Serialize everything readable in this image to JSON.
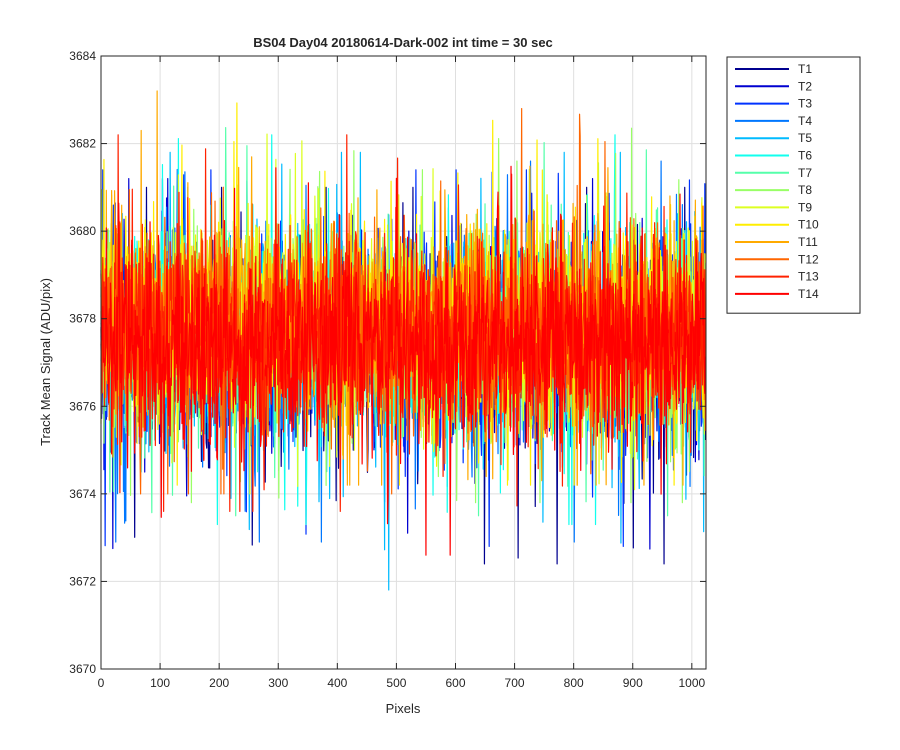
{
  "chart_data": {
    "type": "line",
    "title": "BS04 Day04 20180614-Dark-002 int time = 30 sec",
    "xlabel": "Pixels",
    "ylabel": "Track Mean Signal (ADU/pix)",
    "xlim": [
      0,
      1024
    ],
    "ylim": [
      3670,
      3684
    ],
    "xticks": [
      0,
      100,
      200,
      300,
      400,
      500,
      600,
      700,
      800,
      900,
      1000
    ],
    "xtick_labels": [
      "0",
      "100",
      "200",
      "300",
      "400",
      "500",
      "600",
      "700",
      "800",
      "900",
      "1000"
    ],
    "yticks": [
      3670,
      3672,
      3674,
      3676,
      3678,
      3680,
      3682,
      3684
    ],
    "ytick_labels": [
      "3670",
      "3672",
      "3674",
      "3676",
      "3678",
      "3680",
      "3682",
      "3684"
    ],
    "grid": true,
    "legend_position": "outside-top-right",
    "mean_level": 3677.7,
    "series": [
      {
        "name": "T1",
        "color": "#00008f",
        "mean": 3677.3,
        "min": 3672.4,
        "max": 3681.0
      },
      {
        "name": "T2",
        "color": "#0000d0",
        "mean": 3677.4,
        "min": 3672.6,
        "max": 3681.2
      },
      {
        "name": "T3",
        "color": "#0033ff",
        "mean": 3677.5,
        "min": 3672.8,
        "max": 3681.4
      },
      {
        "name": "T4",
        "color": "#0077ff",
        "mean": 3677.4,
        "min": 3672.9,
        "max": 3681.6
      },
      {
        "name": "T5",
        "color": "#00bbff",
        "mean": 3677.5,
        "min": 3671.0,
        "max": 3681.8
      },
      {
        "name": "T6",
        "color": "#11ffee",
        "mean": 3677.6,
        "min": 3673.3,
        "max": 3682.2
      },
      {
        "name": "T7",
        "color": "#55ffaa",
        "mean": 3677.7,
        "min": 3673.5,
        "max": 3682.6
      },
      {
        "name": "T8",
        "color": "#99ff66",
        "mean": 3677.8,
        "min": 3673.8,
        "max": 3683.4
      },
      {
        "name": "T9",
        "color": "#ddff22",
        "mean": 3677.9,
        "min": 3674.0,
        "max": 3683.6
      },
      {
        "name": "T10",
        "color": "#ffee00",
        "mean": 3678.0,
        "min": 3674.2,
        "max": 3684.0
      },
      {
        "name": "T11",
        "color": "#ffaa00",
        "mean": 3677.9,
        "min": 3674.2,
        "max": 3683.2
      },
      {
        "name": "T12",
        "color": "#ff6600",
        "mean": 3677.8,
        "min": 3674.0,
        "max": 3682.8
      },
      {
        "name": "T13",
        "color": "#ff2200",
        "mean": 3677.6,
        "min": 3673.6,
        "max": 3682.2
      },
      {
        "name": "T14",
        "color": "#ff0000",
        "mean": 3677.4,
        "min": 3672.6,
        "max": 3681.6
      }
    ]
  }
}
